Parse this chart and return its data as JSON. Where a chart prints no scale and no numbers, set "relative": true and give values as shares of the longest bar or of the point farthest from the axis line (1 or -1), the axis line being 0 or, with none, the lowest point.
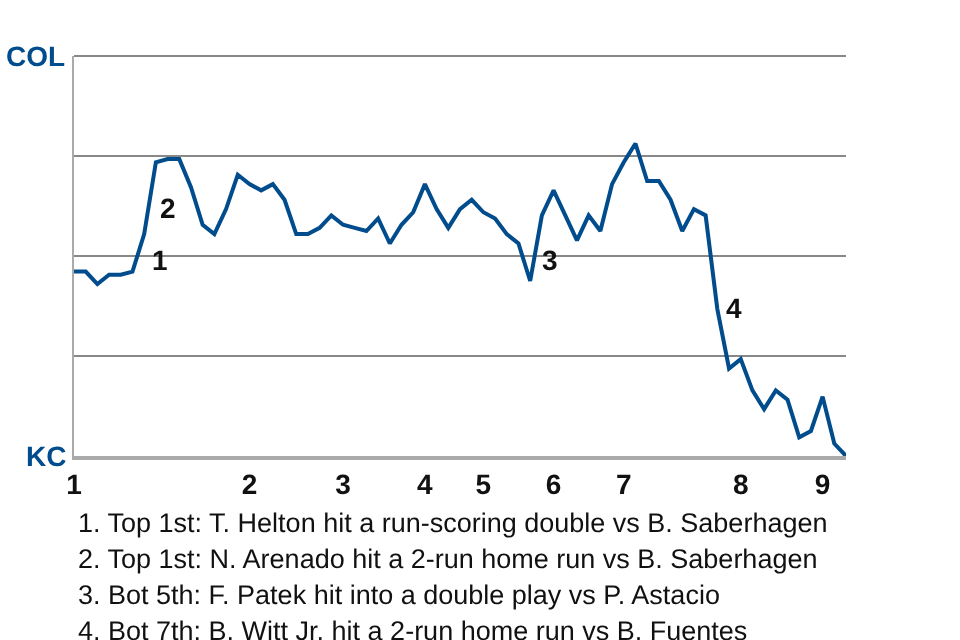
{
  "chart_data": {
    "type": "line",
    "relative": true,
    "categories": [
      "1",
      null,
      null,
      null,
      null,
      null,
      null,
      null,
      null,
      null,
      null,
      null,
      null,
      null,
      null,
      "2",
      null,
      null,
      null,
      null,
      null,
      null,
      null,
      "3",
      null,
      null,
      null,
      null,
      null,
      null,
      "4",
      null,
      null,
      null,
      null,
      "5",
      null,
      null,
      null,
      null,
      null,
      "6",
      null,
      null,
      null,
      null,
      null,
      "7",
      null,
      null,
      null,
      null,
      null,
      null,
      null,
      null,
      null,
      "8",
      null,
      null,
      null,
      null,
      null,
      null,
      "9",
      null,
      null
    ],
    "series": [
      {
        "color": "#004c8c",
        "values": [
          0.59,
          0.59,
          0.55,
          0.58,
          0.58,
          0.59,
          0.71,
          0.94,
          0.95,
          0.95,
          0.86,
          0.74,
          0.71,
          0.79,
          0.9,
          0.87,
          0.85,
          0.87,
          0.82,
          0.71,
          0.71,
          0.73,
          0.77,
          0.74,
          0.73,
          0.72,
          0.76,
          0.68,
          0.74,
          0.78,
          0.87,
          0.79,
          0.73,
          0.79,
          0.82,
          0.78,
          0.76,
          0.71,
          0.68,
          0.56,
          0.77,
          0.85,
          0.77,
          0.69,
          0.77,
          0.72,
          0.87,
          0.94,
          1,
          0.88,
          0.88,
          0.82,
          0.72,
          0.79,
          0.77,
          0.47,
          0.28,
          0.31,
          0.21,
          0.15,
          0.21,
          0.18,
          0.06,
          0.08,
          0.19,
          0.04,
          0
        ]
      }
    ],
    "grid": "y",
    "marker": "none",
    "line_style": "solid",
    "annotations": [
      "COL",
      "KC",
      "1",
      "2",
      "3",
      "4",
      "1. Top 1st: T. Helton hit a run-scoring double vs B. Saberhagen",
      "2. Top 1st: N. Arenado hit a 2-run home run vs B. Saberhagen",
      "3. Bot 5th: F. Patek hit into a double play vs P. Astacio",
      "4. Bot 7th: B. Witt Jr. hit a 2-run home run vs B. Fuentes"
    ]
  }
}
